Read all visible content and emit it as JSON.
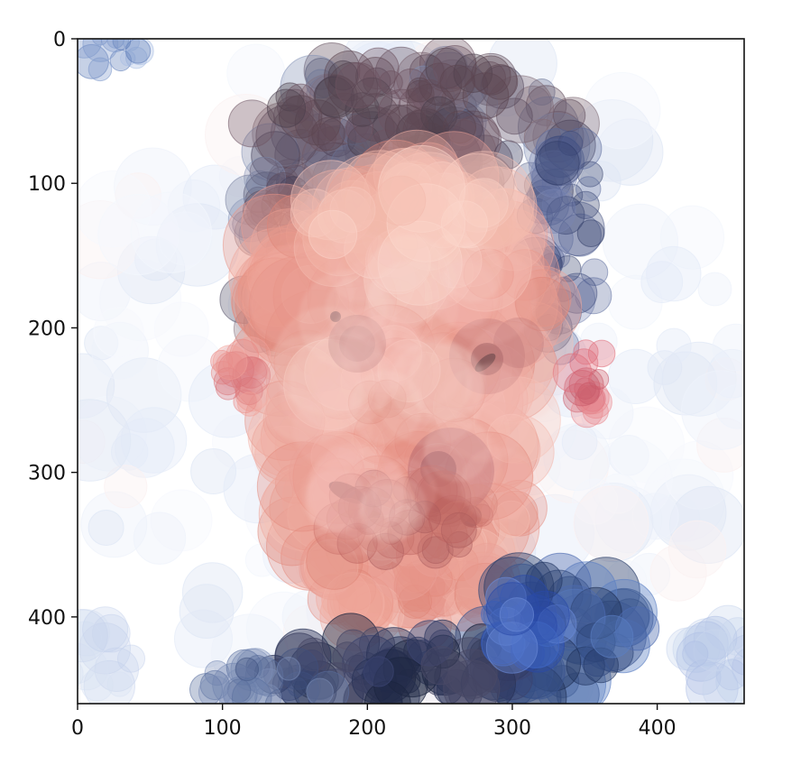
{
  "chart_data": {
    "type": "image",
    "title": "",
    "xlabel": "",
    "ylabel": "",
    "xlim": [
      0,
      460
    ],
    "ylim": [
      460,
      0
    ],
    "y_inverted": true,
    "grid": false,
    "x_ticks": [
      0,
      100,
      200,
      300,
      400
    ],
    "y_ticks": [
      0,
      100,
      200,
      300,
      400
    ],
    "x_tick_labels": [
      "0",
      "100",
      "200",
      "300",
      "400"
    ],
    "y_tick_labels": [
      "0",
      "100",
      "200",
      "300",
      "400"
    ],
    "image_content": "portrait of a face rendered from many overlapping translucent circles",
    "colors": {
      "background": "#ffffff",
      "skin": "#e8988c",
      "hair": "#6d5a66",
      "shirt": "#33487e",
      "blue_accent": "#5b7fc4",
      "axis": "#111111"
    }
  }
}
